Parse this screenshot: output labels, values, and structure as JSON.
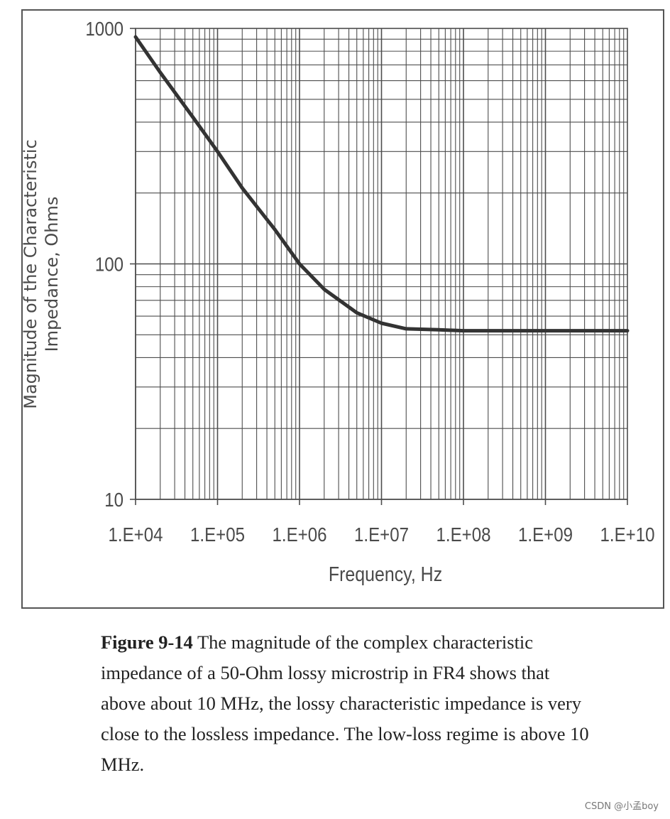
{
  "chart_data": {
    "type": "line",
    "x_scale": "log",
    "y_scale": "log",
    "xlim": [
      10000,
      10000000000
    ],
    "ylim": [
      10,
      1000
    ],
    "x_ticks": [
      "1.E+04",
      "1.E+05",
      "1.E+06",
      "1.E+07",
      "1.E+08",
      "1.E+09",
      "1.E+10"
    ],
    "y_ticks": [
      "10",
      "100",
      "1000"
    ],
    "xlabel": "Frequency, Hz",
    "ylabel_lines": [
      "Magnitude of the Characteristic",
      "Impedance, Ohms"
    ],
    "grid": true,
    "series": [
      {
        "x": [
          10000,
          20000,
          50000,
          100000,
          200000,
          500000,
          1000000,
          2000000,
          5000000,
          10000000,
          20000000,
          50000000,
          100000000,
          1000000000,
          10000000000
        ],
        "y": [
          920,
          650,
          420,
          300,
          210,
          140,
          100,
          78,
          62,
          56,
          53,
          52.5,
          52,
          52,
          52
        ]
      }
    ]
  },
  "caption": {
    "label": "Figure 9-14",
    "text": " The magnitude of the complex characteristic impedance of a 50-Ohm lossy microstrip in FR4 shows that above about 10 MHz, the lossy characteristic impedance is very close to the lossless impedance. The low-loss regime is above 10 MHz."
  },
  "watermark": "CSDN @小孟boy",
  "colors": {
    "grid": "#4d4d4d",
    "curve": "#333333",
    "text": "#4a4a4a"
  }
}
